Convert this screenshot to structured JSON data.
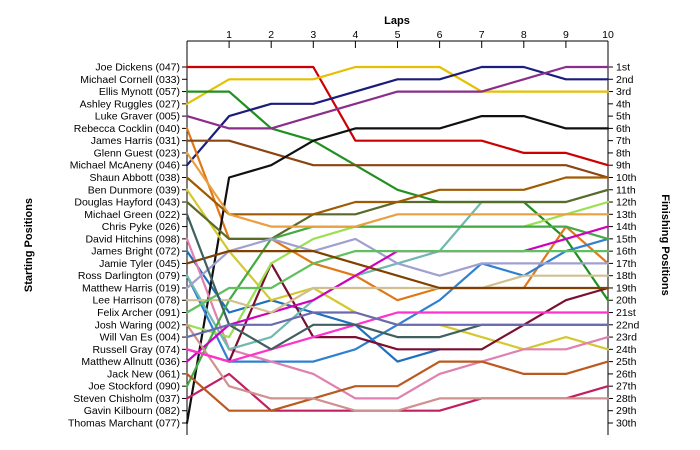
{
  "chart_data": {
    "type": "line",
    "title": "Laps",
    "ylabel_left": "Starting Positions",
    "ylabel_right": "Finishing Positions",
    "x_ticks": [
      "1",
      "2",
      "3",
      "4",
      "5",
      "6",
      "7",
      "8",
      "9",
      "10"
    ],
    "xlim": [
      0,
      10
    ],
    "ylim": [
      1,
      30
    ],
    "starting_labels": [
      "Joe Dickens (047)",
      "Michael Cornell (033)",
      "Ellis Mynott (057)",
      "Ashley Ruggles (027)",
      "Luke Graver (005)",
      "Rebecca Cocklin (040)",
      "James Harris (031)",
      "Glenn Guest (023)",
      "Michael McAneny (046)",
      "Shaun Abbott (038)",
      "Ben Dunmore (039)",
      "Douglas Hayford (043)",
      "Michael Green (022)",
      "Chris Pyke (026)",
      "David Hitchins (098)",
      "James Bright (072)",
      "Jamie Tyler (045)",
      "Ross Darlington (079)",
      "Matthew Harris (019)",
      "Lee Harrison (078)",
      "Felix Archer (091)",
      "Josh Waring (002)",
      "Will Van Es (004)",
      "Russell Gray (074)",
      "Matthew Allnutt (036)",
      "Jack New (061)",
      "Joe Stockford (090)",
      "Steven Chisholm (037)",
      "Gavin Kilbourn (082)",
      "Thomas Marchant (077)"
    ],
    "finishing_labels": [
      "1st",
      "2nd",
      "3rd",
      "4th",
      "5th",
      "6th",
      "7th",
      "8th",
      "9th",
      "10th",
      "11th",
      "12th",
      "13th",
      "14th",
      "15th",
      "16th",
      "17th",
      "18th",
      "19th",
      "20th",
      "21st",
      "22nd",
      "23rd",
      "24th",
      "25th",
      "26th",
      "27th",
      "28th",
      "29th",
      "30th"
    ],
    "series": [
      {
        "color": "#cc0000",
        "values": [
          1,
          1,
          1,
          1,
          7,
          7,
          7,
          7,
          8,
          8,
          9
        ]
      },
      {
        "color": "#e6c000",
        "values": [
          4,
          2,
          2,
          2,
          1,
          1,
          1,
          3,
          3,
          3,
          3
        ]
      },
      {
        "color": "#209020",
        "values": [
          3,
          3,
          6,
          7,
          9,
          11,
          12,
          12,
          12,
          15,
          20
        ]
      },
      {
        "color": "#1c1c7c",
        "values": [
          9,
          5,
          4,
          4,
          3,
          2,
          2,
          1,
          1,
          2,
          2
        ]
      },
      {
        "color": "#8a2e8a",
        "values": [
          5,
          6,
          6,
          5,
          4,
          3,
          3,
          3,
          2,
          1,
          1
        ]
      },
      {
        "color": "#e07818",
        "values": [
          6,
          15,
          15,
          17,
          18,
          20,
          19,
          19,
          19,
          14,
          17
        ]
      },
      {
        "color": "#8b4513",
        "values": [
          7,
          7,
          8,
          9,
          9,
          9,
          9,
          9,
          9,
          9,
          10
        ]
      },
      {
        "color": "#1f6fbf",
        "values": [
          16,
          21,
          20,
          21,
          22,
          25,
          24
        ]
      },
      {
        "color": "#101010",
        "values": [
          30,
          10,
          9,
          7,
          6,
          6,
          6,
          5,
          5,
          6,
          6
        ]
      },
      {
        "color": "#3080d0",
        "values": [
          18,
          25,
          25,
          25,
          24,
          22,
          20,
          17,
          18,
          16,
          15
        ]
      },
      {
        "color": "#d4c830",
        "values": [
          11,
          16,
          20,
          19,
          21,
          22,
          22,
          23,
          24,
          23,
          24
        ]
      },
      {
        "color": "#e080b0",
        "values": [
          15,
          24,
          25,
          26,
          28,
          28,
          26,
          25,
          24,
          24,
          23
        ]
      },
      {
        "color": "#7a1030",
        "values": [
          24,
          25,
          17,
          23,
          23,
          24,
          24,
          24,
          22,
          20,
          19
        ]
      },
      {
        "color": "#c02060",
        "values": [
          28,
          26,
          29,
          29,
          29,
          29,
          29,
          28,
          28,
          28,
          27
        ]
      },
      {
        "color": "#9ae050",
        "values": [
          22,
          23,
          17,
          15,
          14,
          14,
          14,
          14,
          14,
          13,
          12
        ]
      },
      {
        "color": "#70b8b0",
        "values": [
          18,
          24,
          23,
          20,
          18,
          17,
          16,
          12,
          12,
          12,
          11
        ]
      },
      {
        "color": "#5a6a2a",
        "values": [
          12,
          15,
          15,
          13,
          13,
          12,
          12,
          12,
          12,
          12,
          11
        ]
      },
      {
        "color": "#44aa44",
        "values": [
          27,
          20,
          15,
          14,
          14,
          14,
          14,
          14,
          14,
          14,
          15
        ]
      },
      {
        "color": "#a0a0d0",
        "values": [
          19,
          16,
          15,
          16,
          15,
          17,
          18,
          17,
          17,
          17,
          17
        ]
      },
      {
        "color": "#d000c0",
        "values": [
          25,
          22,
          21,
          20,
          18,
          16,
          16,
          16,
          16,
          15,
          14
        ]
      },
      {
        "color": "#d0c090",
        "values": [
          20,
          20,
          21,
          19,
          19,
          19,
          19,
          19,
          18,
          18,
          18
        ]
      },
      {
        "color": "#bb5a20",
        "values": [
          26,
          29,
          29,
          28,
          27,
          27,
          25,
          25,
          26,
          26,
          25
        ]
      },
      {
        "color": "#d09090",
        "values": [
          22,
          27,
          28,
          28,
          29,
          29,
          28,
          28,
          28,
          28,
          28
        ]
      },
      {
        "color": "#ff33cc",
        "values": [
          24,
          25,
          24,
          23,
          22,
          21,
          21,
          21,
          21,
          21,
          21
        ]
      },
      {
        "color": "#60c060",
        "values": [
          21,
          19,
          19,
          17,
          16,
          16,
          16,
          16,
          16,
          16,
          16
        ]
      },
      {
        "color": "#804000",
        "values": [
          17,
          16,
          16,
          16,
          17,
          18,
          19,
          19,
          19,
          19,
          19
        ]
      },
      {
        "color": "#406060",
        "values": [
          13,
          22,
          24,
          22,
          22,
          23,
          23,
          22,
          22,
          22,
          22
        ]
      },
      {
        "color": "#6a6ab0",
        "values": [
          23,
          22,
          22,
          21,
          21,
          22,
          22,
          22,
          22,
          22,
          22
        ]
      },
      {
        "color": "#a05a00",
        "values": [
          10,
          13,
          13,
          13,
          12,
          12,
          11,
          11,
          11,
          10,
          10
        ]
      },
      {
        "color": "#e8a040",
        "values": [
          8,
          13,
          14,
          14,
          14,
          13,
          13,
          13,
          13,
          13,
          13
        ]
      }
    ]
  }
}
